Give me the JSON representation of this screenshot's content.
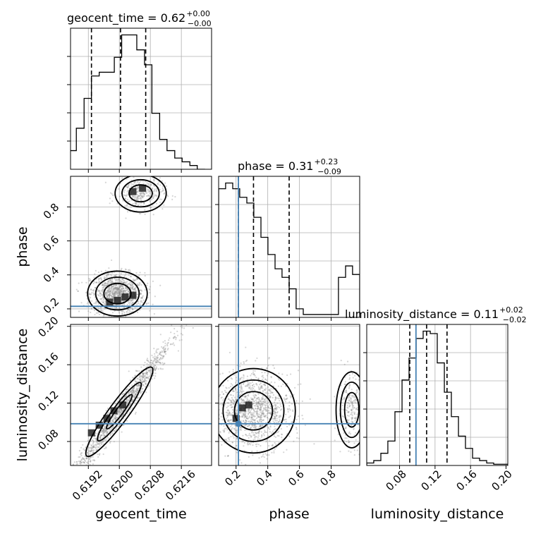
{
  "colors": {
    "truth": "#4682b4",
    "line": "#000000",
    "grid": "#b0b0b0",
    "scatter": "#888888"
  },
  "chart_data": [
    {
      "type": "histogram",
      "panel": "geocent_time",
      "title": {
        "main": "geocent_time = 0.62",
        "sup": "+0.00",
        "sub": "−0.00"
      },
      "xlim": [
        0.61874,
        0.62238
      ],
      "bins_x": [
        0.6187,
        0.61889,
        0.61909,
        0.61928,
        0.61948,
        0.61967,
        0.61987,
        0.62006,
        0.62026,
        0.62045,
        0.62065,
        0.62084,
        0.62104,
        0.62123,
        0.62143,
        0.62162,
        0.62182,
        0.62201,
        0.62221
      ],
      "counts": [
        5,
        11,
        19,
        25,
        26,
        26,
        30,
        36,
        36,
        32,
        28,
        15,
        8,
        5,
        3,
        2,
        1,
        0
      ],
      "quantiles": [
        0.61928,
        0.62003,
        0.62068
      ],
      "grid_x": [
        0.6192,
        0.62,
        0.6208,
        0.6216
      ]
    },
    {
      "type": "histogram",
      "panel": "phase",
      "title": {
        "main": "phase = 0.31",
        "sup": "+0.23",
        "sub": "−0.09"
      },
      "xlim": [
        0.09,
        0.98
      ],
      "bins_x": [
        0.09,
        0.134,
        0.179,
        0.223,
        0.268,
        0.312,
        0.357,
        0.401,
        0.446,
        0.49,
        0.535,
        0.579,
        0.624,
        0.668,
        0.713,
        0.757,
        0.802,
        0.846,
        0.891,
        0.935,
        0.98
      ],
      "counts": [
        45,
        47,
        45,
        42,
        40,
        35,
        28,
        22,
        17,
        14,
        10,
        3,
        1,
        1,
        1,
        1,
        1,
        14,
        18,
        15
      ],
      "quantiles": [
        0.215,
        0.31,
        0.535
      ],
      "truth": 0.215,
      "grid_x": [
        0.2,
        0.4,
        0.6,
        0.8
      ],
      "xticks": [
        "0.2",
        "0.4",
        "0.6",
        "0.8"
      ],
      "xlabel": "phase"
    },
    {
      "type": "histogram",
      "panel": "luminosity_distance",
      "title": {
        "main": "luminosity_distance = 0.11",
        "sup": "+0.02",
        "sub": "−0.02"
      },
      "xlim": [
        0.043,
        0.202
      ],
      "bins_x": [
        0.043,
        0.0509,
        0.0589,
        0.0668,
        0.0748,
        0.0828,
        0.0907,
        0.0987,
        0.1066,
        0.1146,
        0.1225,
        0.1305,
        0.1384,
        0.1464,
        0.1543,
        0.1623,
        0.1702,
        0.1782,
        0.1861,
        0.1941,
        0.202
      ],
      "counts": [
        1,
        2,
        5,
        10,
        22,
        35,
        44,
        52,
        55,
        54,
        42,
        30,
        20,
        12,
        7,
        3,
        2,
        1,
        0.5,
        0.5
      ],
      "quantiles": [
        0.0915,
        0.1105,
        0.1335
      ],
      "truth": 0.0985,
      "grid_x": [
        0.08,
        0.12,
        0.16,
        0.2
      ],
      "xticks": [
        "0.08",
        "0.12",
        "0.16",
        "0.20"
      ],
      "xlabel": "luminosity_distance"
    },
    {
      "type": "scatter",
      "panel": "geocent_time vs phase",
      "xlim": [
        0.61874,
        0.62238
      ],
      "ylim": [
        0.15,
        0.98
      ],
      "truth_y": 0.215,
      "yticks": [
        "0.2",
        "0.4",
        "0.6",
        "0.8"
      ],
      "ytick_values": [
        0.2,
        0.4,
        0.6,
        0.8
      ],
      "ylabel": "phase",
      "clusters": [
        {
          "cx": 0.61995,
          "cy": 0.29,
          "sx": 0.00035,
          "sy": 0.06,
          "n": 1100
        },
        {
          "cx": 0.62055,
          "cy": 0.88,
          "sx": 0.0003,
          "sy": 0.05,
          "n": 350
        }
      ],
      "dark_cells": [
        [
          0.61995,
          0.25
        ],
        [
          0.62015,
          0.27
        ],
        [
          0.62035,
          0.28
        ],
        [
          0.61975,
          0.24
        ],
        [
          0.62035,
          0.89
        ],
        [
          0.6206,
          0.91
        ]
      ]
    },
    {
      "type": "scatter",
      "panel": "geocent_time vs luminosity_distance",
      "xlim": [
        0.61874,
        0.62238
      ],
      "ylim": [
        0.055,
        0.202
      ],
      "truth_y": 0.0985,
      "xticks": [
        "0.6192",
        "0.6200",
        "0.6208",
        "0.6216"
      ],
      "xtick_values": [
        0.6192,
        0.62,
        0.6208,
        0.6216
      ],
      "yticks": [
        "0.08",
        "0.12",
        "0.16",
        "0.20"
      ],
      "ytick_values": [
        0.08,
        0.12,
        0.16,
        0.2
      ],
      "xlabel": "geocent_time",
      "ylabel": "luminosity_distance",
      "slope": 55,
      "ref": [
        0.62,
        0.111
      ],
      "spread_x": 0.00042,
      "spread_y": 0.008,
      "n": 1300,
      "dark_cells": [
        [
          0.61928,
          0.089
        ],
        [
          0.61968,
          0.104
        ],
        [
          0.61986,
          0.112
        ],
        [
          0.62009,
          0.118
        ],
        [
          0.61948,
          0.097
        ]
      ]
    },
    {
      "type": "scatter",
      "panel": "phase vs luminosity_distance",
      "xlim": [
        0.09,
        0.98
      ],
      "ylim": [
        0.055,
        0.202
      ],
      "truth_x": 0.215,
      "truth_y": 0.0985,
      "clusters": [
        {
          "cx": 0.31,
          "cy": 0.112,
          "sx": 0.12,
          "sy": 0.02,
          "n": 1300
        },
        {
          "cx": 0.93,
          "cy": 0.113,
          "sx": 0.045,
          "sy": 0.018,
          "n": 260
        }
      ],
      "dark_cells": [
        [
          0.24,
          0.115
        ],
        [
          0.28,
          0.118
        ],
        [
          0.2,
          0.104
        ]
      ]
    }
  ]
}
